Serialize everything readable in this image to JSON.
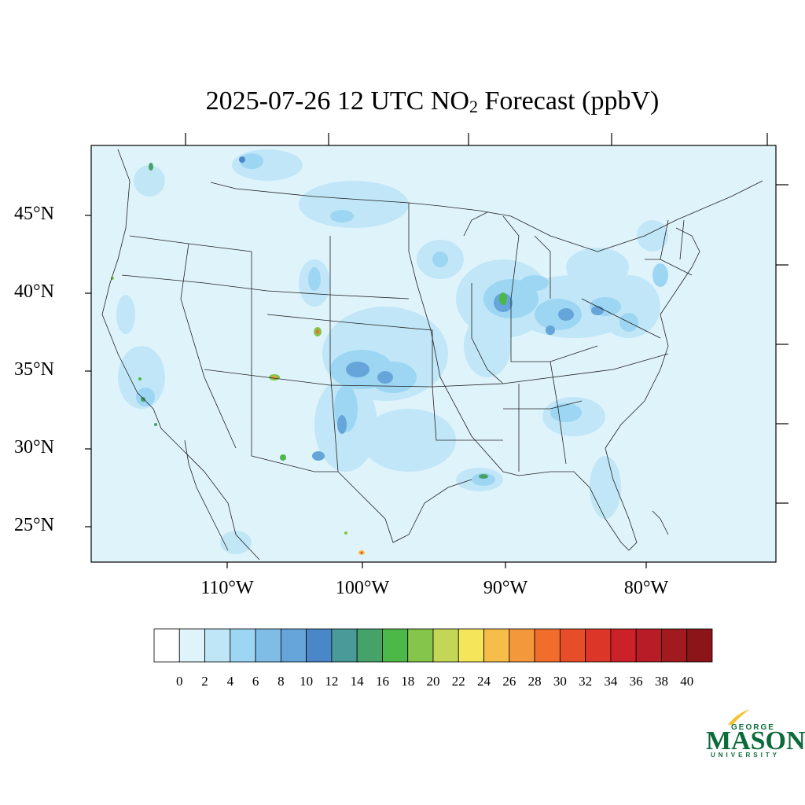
{
  "title": {
    "prefix": "2025-07-26 12 UTC NO",
    "subscript": "2",
    "suffix": " Forecast (ppbV)"
  },
  "lat_labels": [
    "45°N",
    "40°N",
    "35°N",
    "30°N",
    "25°N"
  ],
  "lon_labels": [
    "110°W",
    "100°W",
    "90°W",
    "80°W"
  ],
  "colorbar": {
    "labels": [
      "0",
      "2",
      "4",
      "6",
      "8",
      "10",
      "12",
      "14",
      "16",
      "18",
      "20",
      "22",
      "24",
      "26",
      "28",
      "30",
      "32",
      "34",
      "36",
      "38",
      "40"
    ],
    "colors": [
      "#ffffff",
      "#dff3fb",
      "#bfe6f7",
      "#9dd6f3",
      "#7fbde6",
      "#66a5da",
      "#4a87c9",
      "#4a9a9a",
      "#45a36a",
      "#4cb848",
      "#85c54b",
      "#c3d655",
      "#f5e55a",
      "#f6bd4a",
      "#f4983c",
      "#f16d2c",
      "#e64e29",
      "#dc3628",
      "#cc2129",
      "#b81c26",
      "#a01a1f",
      "#8c1519"
    ]
  },
  "map": {
    "background_color": "#dff3fb"
  },
  "logo": {
    "top": "GEORGE",
    "middle": "MASON",
    "bottom": "UNIVERSITY",
    "color": "#0c6b3a"
  }
}
